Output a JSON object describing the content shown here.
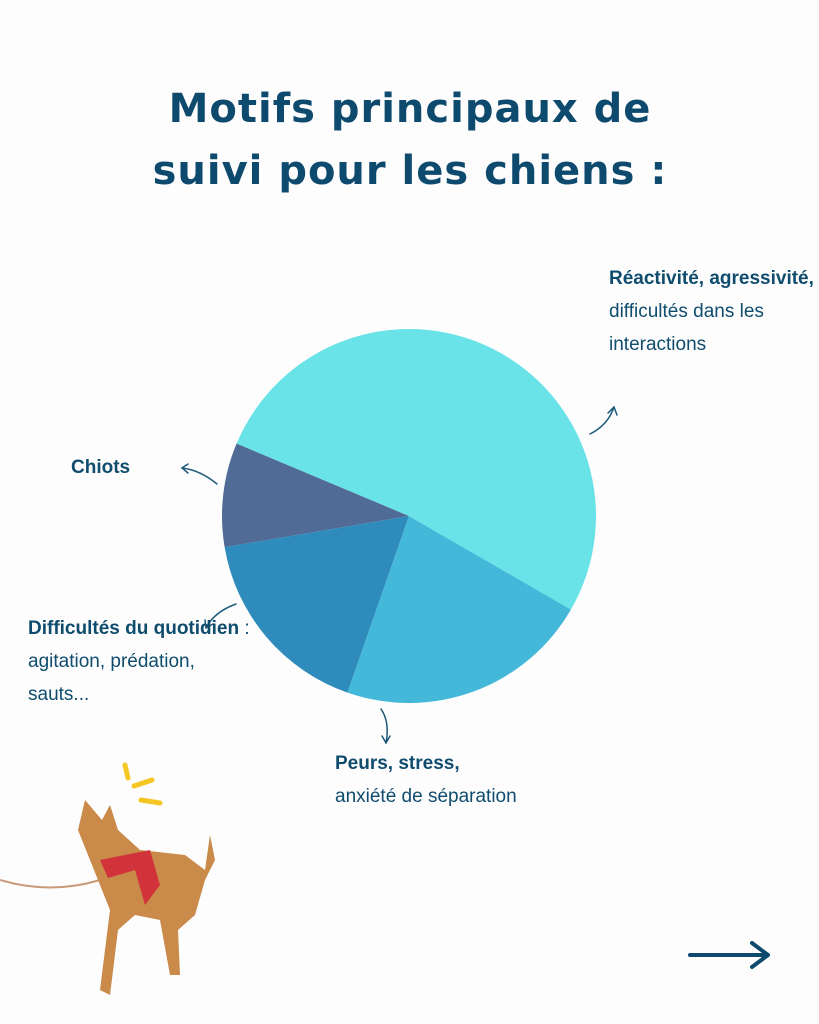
{
  "chart_data": {
    "type": "pie",
    "title": "Motifs principaux de suivi pour les chiens :",
    "categories": [
      "Réactivité, agressivité,",
      "Peurs, stress,",
      "Difficultés du quotidien",
      "Chiots"
    ],
    "details": [
      "difficultés dans les interactions",
      "anxiété de séparation",
      ": agitation, prédation, sauts...",
      null
    ],
    "values": [
      52,
      22,
      17,
      9
    ],
    "colors": [
      "#69e3e8",
      "#44b8d8",
      "#2e8bbc",
      "#506b96"
    ]
  }
}
